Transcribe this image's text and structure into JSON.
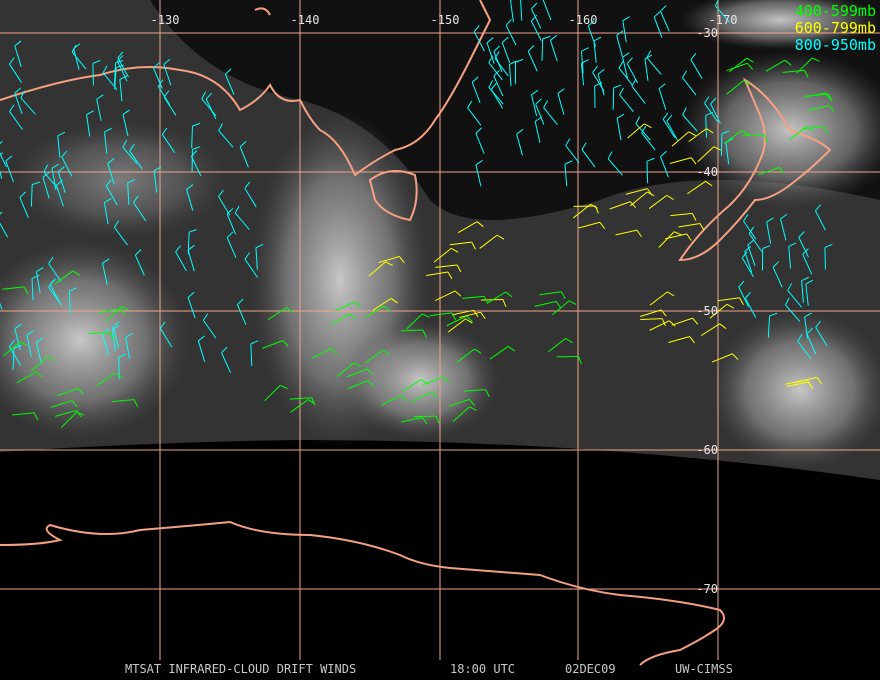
{
  "map": {
    "longitude_labels": [
      "-130",
      "-140",
      "-150",
      "-160",
      "-170"
    ],
    "latitude_labels": [
      "-30",
      "-40",
      "-50",
      "-60",
      "-70"
    ]
  },
  "legend": [
    {
      "label": "400-599mb",
      "color": "#00ff00"
    },
    {
      "label": "600-799mb",
      "color": "#ffff00"
    },
    {
      "label": "800-950mb",
      "color": "#00ffff"
    }
  ],
  "footer": {
    "title": "MTSAT INFRARED-CLOUD DRIFT WINDS",
    "time": "18:00 UTC",
    "date": "02DEC09",
    "credit": "UW-CIMSS"
  }
}
